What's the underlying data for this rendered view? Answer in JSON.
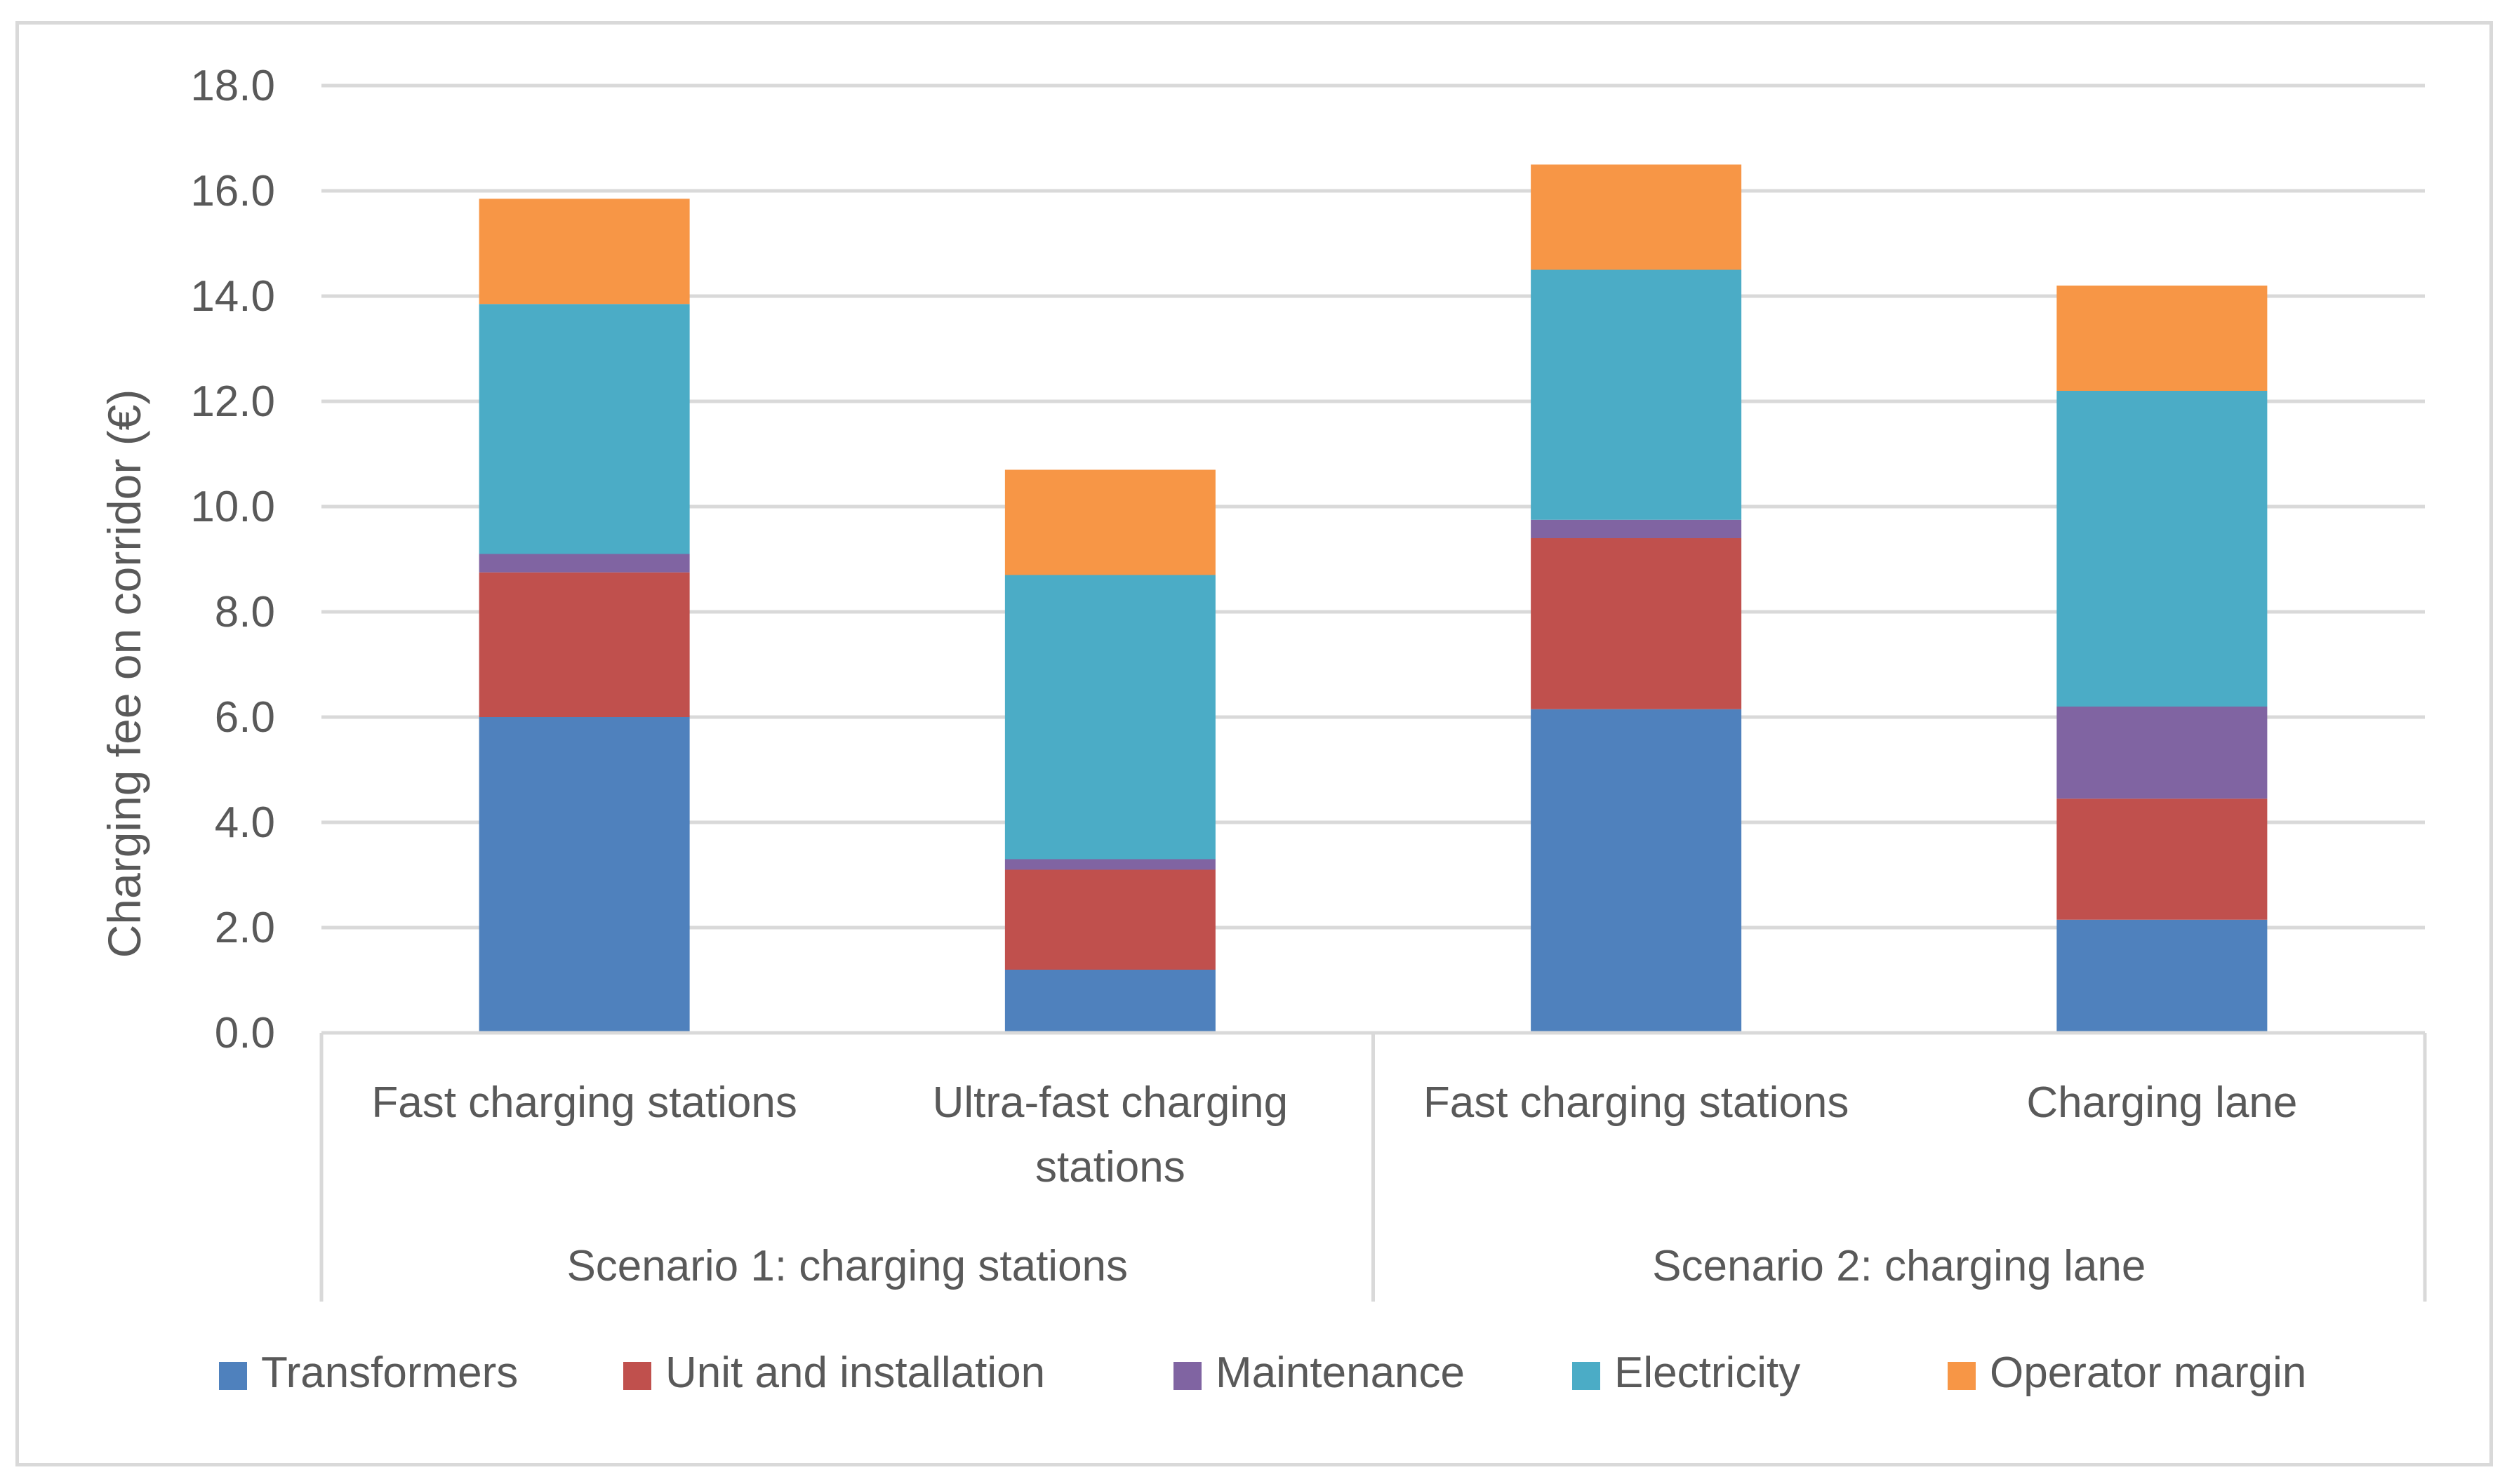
{
  "chart_data": {
    "type": "bar",
    "stacked": true,
    "title": "",
    "ylabel": "Charging fee on corridor (€)",
    "xlabel": "",
    "ylim": [
      0,
      18
    ],
    "ytick_step": 2,
    "yticks": [
      "0.0",
      "2.0",
      "4.0",
      "6.0",
      "8.0",
      "10.0",
      "12.0",
      "14.0",
      "16.0",
      "18.0"
    ],
    "categories": [
      [
        "Fast charging stations"
      ],
      [
        "Ultra-fast charging",
        "stations"
      ],
      [
        "Fast charging stations"
      ],
      [
        "Charging lane"
      ]
    ],
    "groups": [
      {
        "label": "Scenario 1: charging stations",
        "count": 2
      },
      {
        "label": "Scenario 2: charging lane",
        "count": 2
      }
    ],
    "series": [
      {
        "name": "Transformers",
        "color": "#4f81bd",
        "values": [
          6.0,
          1.2,
          6.15,
          2.15
        ]
      },
      {
        "name": "Unit and installation",
        "color": "#c0504d",
        "values": [
          2.75,
          1.9,
          3.25,
          2.3
        ]
      },
      {
        "name": "Maintenance",
        "color": "#8064a2",
        "values": [
          0.35,
          0.2,
          0.35,
          1.75
        ]
      },
      {
        "name": "Electricity",
        "color": "#4bacc6",
        "values": [
          4.75,
          5.4,
          4.75,
          6.0
        ]
      },
      {
        "name": "Operator margin",
        "color": "#f79646",
        "values": [
          2.0,
          2.0,
          2.0,
          2.0
        ]
      }
    ],
    "grid": true,
    "legend_position": "bottom"
  }
}
